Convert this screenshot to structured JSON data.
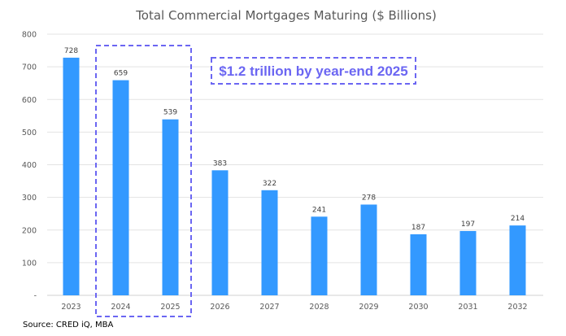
{
  "chart_data": {
    "type": "bar",
    "title": "Total Commercial Mortgages Maturing ($ Billions)",
    "categories": [
      "2023",
      "2024",
      "2025",
      "2026",
      "2027",
      "2028",
      "2029",
      "2030",
      "2031",
      "2032"
    ],
    "values": [
      728,
      659,
      539,
      383,
      322,
      241,
      278,
      187,
      197,
      214
    ],
    "ylim": [
      0,
      800
    ],
    "yticks": [
      0,
      100,
      200,
      300,
      400,
      500,
      600,
      700,
      800
    ],
    "ytick_labels": [
      "-",
      "100",
      "200",
      "300",
      "400",
      "500",
      "600",
      "700",
      "800"
    ],
    "grid": true,
    "bar_color": "#3399ff",
    "highlight": {
      "categories": [
        "2024",
        "2025"
      ],
      "color": "#6b66f2"
    },
    "annotation": "$1.2 trillion by year-end 2025",
    "source": "Source:  CRED iQ, MBA"
  }
}
